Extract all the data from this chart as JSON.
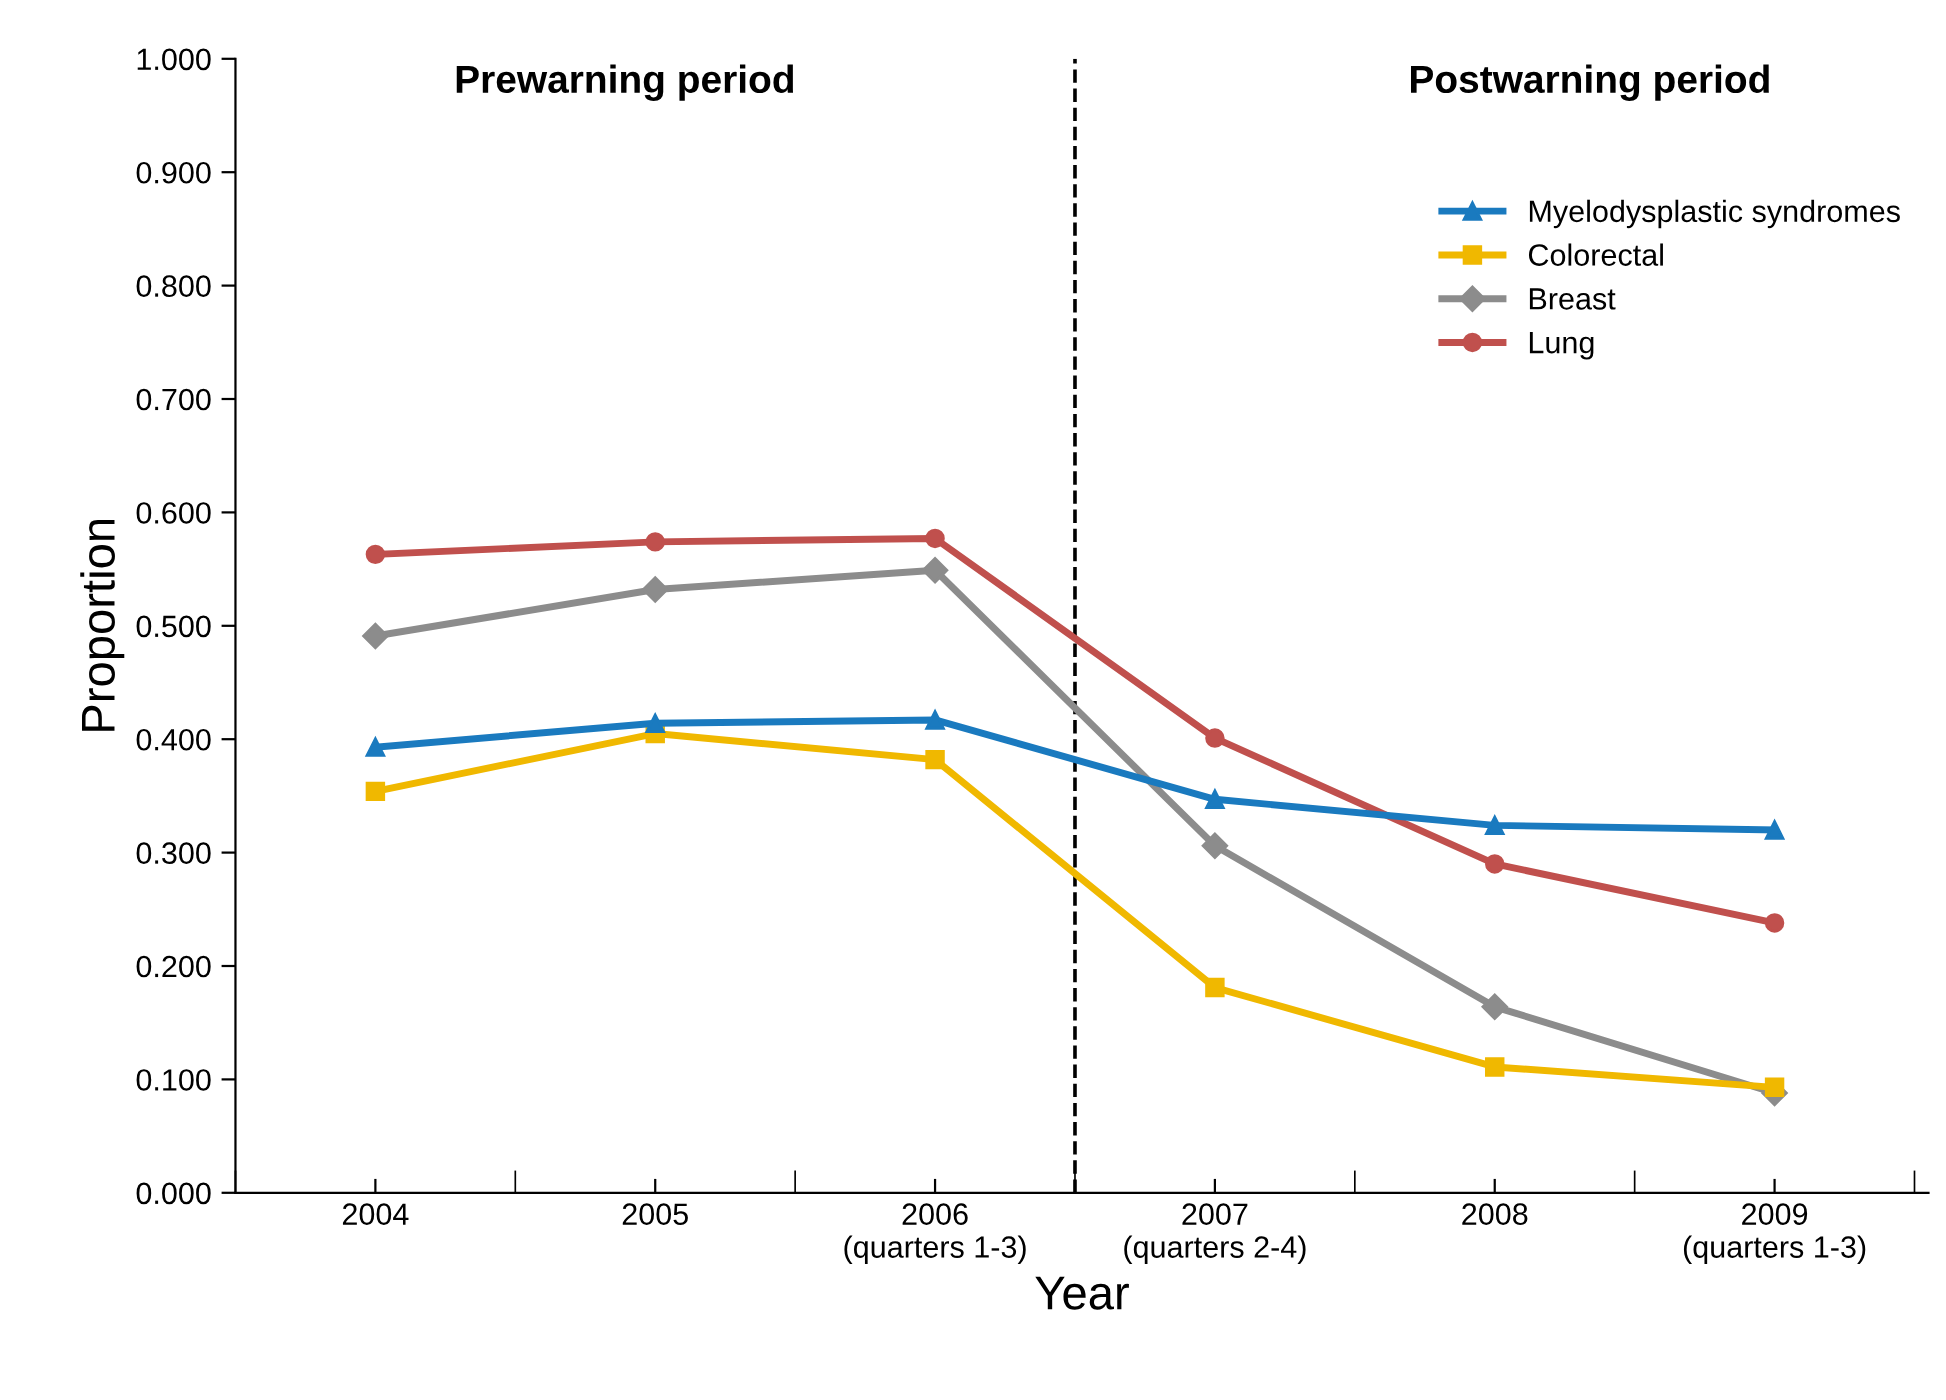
{
  "chart_data": {
    "type": "line",
    "xlabel": "Year",
    "ylabel": "Proportion",
    "categories": [
      "2004",
      "2005",
      "2006\n(quarters 1-3)",
      "2007\n(quarters 2-4)",
      "2008",
      "2009\n(quarters 1-3)"
    ],
    "series": [
      {
        "name": "Myelodysplastic syndromes",
        "color": "#1a7abf",
        "marker": "triangle",
        "values": [
          0.393,
          0.414,
          0.417,
          0.347,
          0.324,
          0.32
        ]
      },
      {
        "name": "Colorectal",
        "color": "#f0b800",
        "marker": "square",
        "values": [
          0.354,
          0.405,
          0.382,
          0.181,
          0.111,
          0.093
        ]
      },
      {
        "name": "Breast",
        "color": "#8c8c8c",
        "marker": "diamond",
        "values": [
          0.491,
          0.532,
          0.549,
          0.306,
          0.164,
          0.088
        ]
      },
      {
        "name": "Lung",
        "color": "#c0504d",
        "marker": "circle",
        "values": [
          0.563,
          0.574,
          0.577,
          0.401,
          0.29,
          0.238
        ]
      }
    ],
    "ylim": [
      0,
      1
    ],
    "yticks": [
      {
        "value": 0,
        "label": "0.000"
      },
      {
        "value": 0.1,
        "label": "0.100"
      },
      {
        "value": 0.2,
        "label": "0.200"
      },
      {
        "value": 0.3,
        "label": "0.300"
      },
      {
        "value": 0.4,
        "label": "0.400"
      },
      {
        "value": 0.5,
        "label": "0.500"
      },
      {
        "value": 0.6,
        "label": "0.600"
      },
      {
        "value": 0.7,
        "label": "0.700"
      },
      {
        "value": 0.8,
        "label": "0.800"
      },
      {
        "value": 0.9,
        "label": "0.900"
      },
      {
        "value": 1,
        "label": "1.000"
      }
    ],
    "annotations": [
      "Prewarning period",
      "Postwarning period"
    ],
    "legend": "top right",
    "grid": false,
    "line_style": "solid"
  }
}
